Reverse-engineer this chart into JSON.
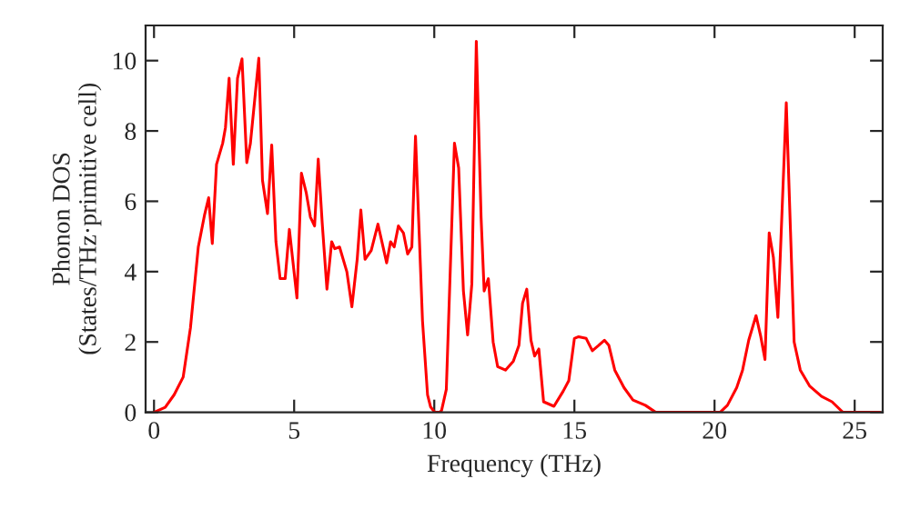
{
  "chart_data": {
    "type": "line",
    "xlabel": "Frequency (THz)",
    "ylabel": "Phonon DOS\n(States/THz·primitive cell)",
    "xlim": [
      -0.3,
      26
    ],
    "ylim": [
      0,
      11
    ],
    "xticks": [
      0,
      5,
      10,
      15,
      20,
      25
    ],
    "yticks": [
      0,
      2,
      4,
      6,
      8,
      10
    ],
    "grid": false,
    "marker": "none",
    "line_style": "solid",
    "series": [
      {
        "color": "#ff0000",
        "x": [
          0,
          0.4,
          0.72,
          1.04,
          1.3,
          1.58,
          1.8,
          1.95,
          2.08,
          2.23,
          2.45,
          2.55,
          2.68,
          2.83,
          2.98,
          3.14,
          3.31,
          3.44,
          3.74,
          3.87,
          4.05,
          4.2,
          4.35,
          4.5,
          4.68,
          4.83,
          5.1,
          5.26,
          5.43,
          5.58,
          5.73,
          5.86,
          6.0,
          6.17,
          6.34,
          6.45,
          6.62,
          6.88,
          7.06,
          7.25,
          7.38,
          7.53,
          7.75,
          7.99,
          8.3,
          8.44,
          8.57,
          8.72,
          8.9,
          9.05,
          9.2,
          9.33,
          9.58,
          9.76,
          9.87,
          10.02,
          10.2,
          10.26,
          10.43,
          10.72,
          10.87,
          11.04,
          11.19,
          11.34,
          11.5,
          11.67,
          11.78,
          11.93,
          12.1,
          12.26,
          12.54,
          12.82,
          13.02,
          13.15,
          13.3,
          13.45,
          13.58,
          13.73,
          13.9,
          14.27,
          14.6,
          14.8,
          15.0,
          15.15,
          15.42,
          15.64,
          15.86,
          16.07,
          16.23,
          16.44,
          16.77,
          17.09,
          17.53,
          17.9,
          20.2,
          20.46,
          20.79,
          21.0,
          21.22,
          21.48,
          21.65,
          21.8,
          21.95,
          22.1,
          22.26,
          22.56,
          22.84,
          23.06,
          23.39,
          23.82,
          24.19,
          24.58,
          25.9
        ],
        "values": [
          0,
          0.14,
          0.5,
          1.0,
          2.4,
          4.7,
          5.6,
          6.1,
          4.8,
          7.05,
          7.65,
          8.1,
          9.5,
          7.05,
          9.5,
          10.05,
          7.1,
          7.65,
          10.07,
          6.6,
          5.65,
          7.6,
          4.85,
          3.8,
          3.8,
          5.2,
          3.25,
          6.8,
          6.25,
          5.55,
          5.3,
          7.2,
          5.4,
          3.5,
          4.85,
          4.65,
          4.7,
          4.0,
          3.0,
          4.35,
          5.75,
          4.35,
          4.6,
          5.35,
          4.25,
          4.85,
          4.7,
          5.3,
          5.1,
          4.5,
          4.7,
          7.85,
          2.6,
          0.5,
          0.15,
          0,
          0,
          0.05,
          0.65,
          7.65,
          6.95,
          3.45,
          2.2,
          3.65,
          10.55,
          5.55,
          3.45,
          3.8,
          2.0,
          1.3,
          1.2,
          1.45,
          1.9,
          3.1,
          3.5,
          2.05,
          1.6,
          1.8,
          0.3,
          0.17,
          0.6,
          0.9,
          2.1,
          2.15,
          2.1,
          1.75,
          1.9,
          2.05,
          1.9,
          1.2,
          0.7,
          0.35,
          0.2,
          0,
          0,
          0.2,
          0.7,
          1.2,
          2.05,
          2.75,
          2.15,
          1.5,
          5.1,
          4.4,
          2.7,
          8.8,
          2.0,
          1.2,
          0.75,
          0.45,
          0.3,
          0,
          0
        ]
      }
    ]
  }
}
